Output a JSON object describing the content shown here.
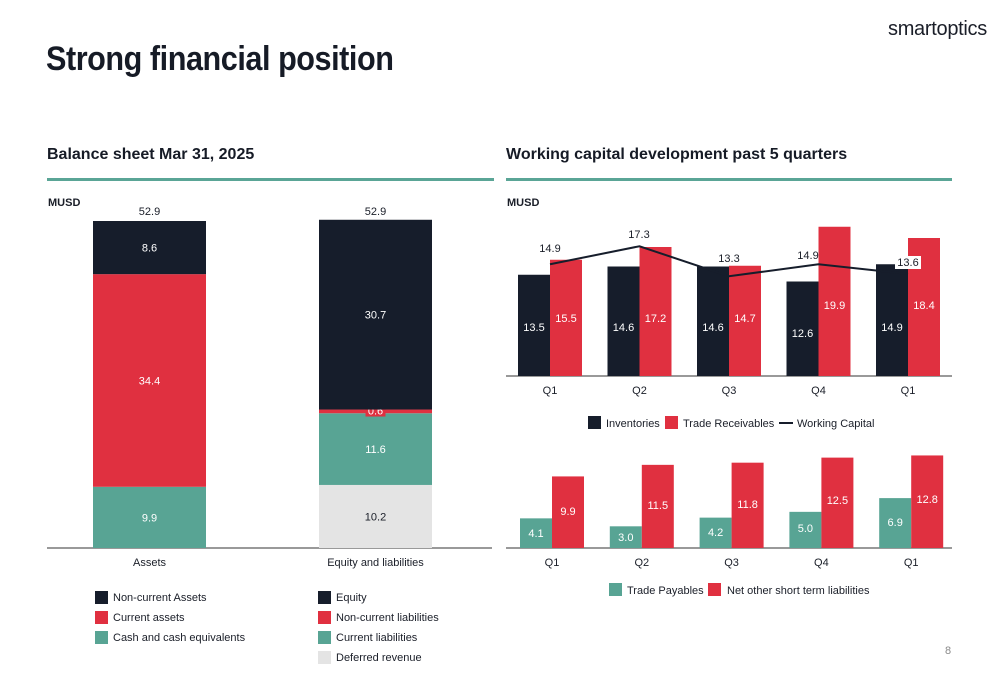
{
  "slide": {
    "title": "Strong financial position",
    "brand": "smartoptics",
    "page_number": "8"
  },
  "colors": {
    "navy": "#161d2b",
    "red": "#e03040",
    "teal": "#58a494",
    "lightgray": "#e4e4e4",
    "line": "#161d2b"
  },
  "chart_data": [
    {
      "type": "bar",
      "stacked": true,
      "title": "Balance sheet Mar 31, 2025",
      "unit_label": "MUSD",
      "categories": [
        "Assets",
        "Equity and liabilities"
      ],
      "totals": [
        "52.9",
        "52.9"
      ],
      "series": [
        {
          "name": "Cash and cash equivalents",
          "color": "teal",
          "values": [
            9.9,
            null
          ]
        },
        {
          "name": "Current assets",
          "color": "red",
          "values": [
            34.4,
            null
          ]
        },
        {
          "name": "Non-current Assets",
          "color": "navy",
          "values": [
            8.6,
            null
          ]
        },
        {
          "name": "Deferred revenue",
          "color": "lightgray",
          "values": [
            null,
            10.2
          ]
        },
        {
          "name": "Current liabilities",
          "color": "teal",
          "values": [
            null,
            11.6
          ]
        },
        {
          "name": "Non-current liabilities",
          "color": "red",
          "values": [
            null,
            0.6
          ]
        },
        {
          "name": "Equity",
          "color": "navy",
          "values": [
            null,
            30.7
          ]
        }
      ],
      "legend_assets": [
        "Non-current Assets",
        "Current assets",
        "Cash and cash equivalents"
      ],
      "legend_liabilities": [
        "Equity",
        "Non-current liabilities",
        "Current liabilities",
        "Deferred revenue"
      ],
      "ylim": [
        0,
        52.9
      ]
    },
    {
      "type": "bar",
      "title": "Working capital development past 5 quarters",
      "unit_label": "MUSD",
      "categories": [
        "Q1",
        "Q2",
        "Q3",
        "Q4",
        "Q1"
      ],
      "series": [
        {
          "name": "Inventories",
          "color": "navy",
          "values": [
            13.5,
            14.6,
            14.6,
            12.6,
            14.9
          ]
        },
        {
          "name": "Trade Receivables",
          "color": "red",
          "values": [
            15.5,
            17.2,
            14.7,
            19.9,
            18.4
          ]
        },
        {
          "name": "Working Capital",
          "type": "line",
          "color": "line",
          "values": [
            14.9,
            17.3,
            13.3,
            14.9,
            13.6
          ]
        }
      ],
      "ylim": [
        0,
        20
      ]
    },
    {
      "type": "bar",
      "categories": [
        "Q1",
        "Q2",
        "Q3",
        "Q4",
        "Q1"
      ],
      "series": [
        {
          "name": "Trade Payables",
          "color": "teal",
          "values": [
            4.1,
            3.0,
            4.2,
            5.0,
            6.9
          ]
        },
        {
          "name": "Net other short term liabilities",
          "color": "red",
          "values": [
            9.9,
            11.5,
            11.8,
            12.5,
            12.8
          ]
        }
      ],
      "value_labels": {
        "Trade Payables": [
          "4.1",
          "3.0",
          "4.2",
          "5.0",
          "6.9"
        ],
        "Net other short term liabilities": [
          "9.9",
          "11.5",
          "11.8",
          "12.5",
          "12.8"
        ]
      },
      "ylim": [
        0,
        13
      ]
    }
  ]
}
